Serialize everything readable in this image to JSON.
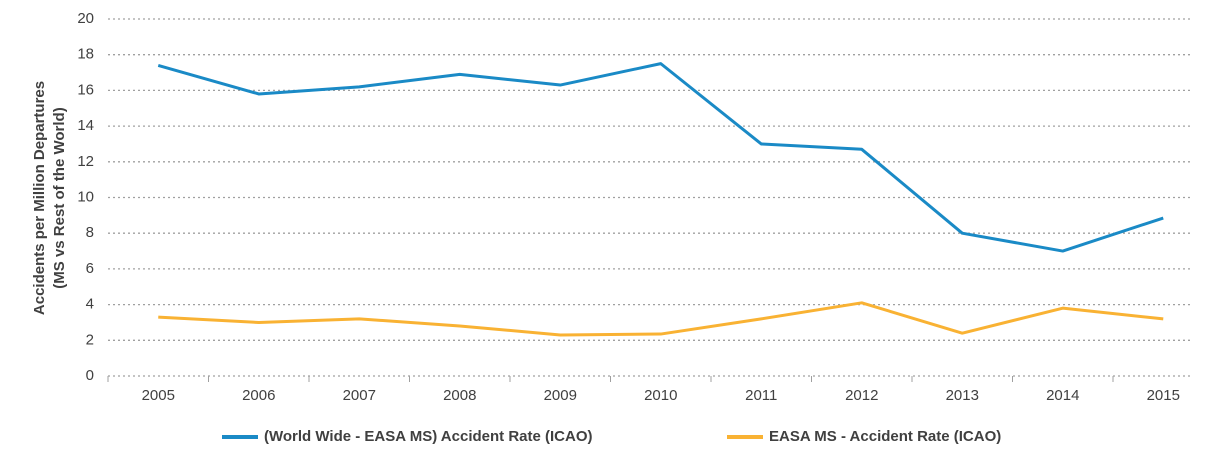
{
  "chart_data": {
    "type": "line",
    "y_label": [
      "Accidents per Million Departures",
      "(MS vs Rest of the World)"
    ],
    "categories": [
      "2005",
      "2006",
      "2007",
      "2008",
      "2009",
      "2010",
      "2011",
      "2012",
      "2013",
      "2014",
      "2015"
    ],
    "series": [
      {
        "name": "(World Wide - EASA MS) Accident Rate (ICAO)",
        "color": "#1a8ac6",
        "values": [
          17.4,
          15.8,
          16.2,
          16.9,
          16.3,
          17.5,
          13.0,
          12.7,
          8.0,
          7.0,
          8.85
        ]
      },
      {
        "name": "EASA MS - Accident Rate (ICAO)",
        "color": "#f9b233",
        "values": [
          3.3,
          3.0,
          3.2,
          2.8,
          2.3,
          2.35,
          3.2,
          4.1,
          2.4,
          3.8,
          3.2
        ]
      }
    ],
    "ylim": [
      0,
      20
    ],
    "yticks": [
      0,
      2,
      4,
      6,
      8,
      10,
      12,
      14,
      16,
      18,
      20
    ],
    "grid": true
  }
}
